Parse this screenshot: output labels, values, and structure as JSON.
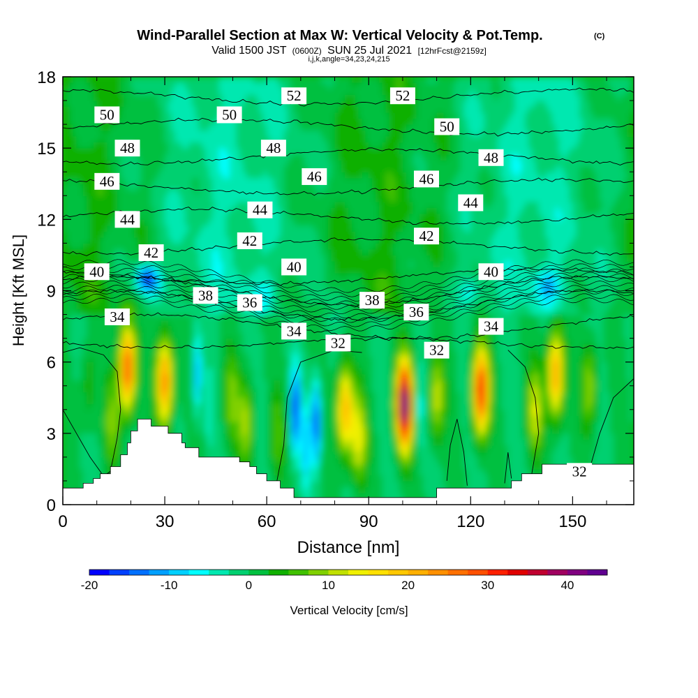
{
  "chart_data": {
    "type": "heatmap",
    "title": "Wind-Parallel Section at Max W: Vertical Velocity & Pot.Temp.",
    "title_mark": "(C)",
    "subtitle_parts": [
      "Valid 1500 JST",
      "(0600Z)",
      "SUN 25 Jul 2021",
      "[12hrFcst@2159z]"
    ],
    "subtitle2": "i,j,k,angle=34,23,24,215",
    "xlabel": "Distance [nm]",
    "ylabel": "Height [Kft MSL]",
    "xlim": [
      0,
      168
    ],
    "ylim": [
      0,
      18
    ],
    "x_ticks": [
      0,
      30,
      60,
      90,
      120,
      150
    ],
    "y_ticks": [
      0,
      3,
      6,
      9,
      12,
      15,
      18
    ],
    "colorbar": {
      "label": "Vertical Velocity [cm/s]",
      "min": -20,
      "max": 45,
      "step": 2.5,
      "ticks": [
        -20,
        -10,
        0,
        10,
        20,
        30,
        40
      ],
      "colors": [
        "#0000ff",
        "#0040ff",
        "#0070ff",
        "#00a0ff",
        "#00d0ff",
        "#00ffff",
        "#00e8b0",
        "#00d070",
        "#00c040",
        "#10b000",
        "#40c000",
        "#80d000",
        "#c0e000",
        "#f0f000",
        "#ffe000",
        "#ffc800",
        "#ffb000",
        "#ff9000",
        "#ff7000",
        "#ff5000",
        "#ff2000",
        "#e00000",
        "#c00030",
        "#a00060",
        "#800080",
        "#600090"
      ]
    },
    "updrafts": [
      {
        "x": 19,
        "y": 5.8,
        "w": 30
      },
      {
        "x": 30,
        "y": 5.2,
        "w": 26
      },
      {
        "x": 14.5,
        "y": 3.5,
        "w": 8
      },
      {
        "x": 49.5,
        "y": 4.5,
        "w": 8
      },
      {
        "x": 54,
        "y": 3.5,
        "w": 10
      },
      {
        "x": 63,
        "y": 3.0,
        "w": 6
      },
      {
        "x": 83,
        "y": 4.0,
        "w": 22
      },
      {
        "x": 87,
        "y": 2.8,
        "w": 14
      },
      {
        "x": 100.5,
        "y": 4.2,
        "w": 44
      },
      {
        "x": 110,
        "y": 4.5,
        "w": 12
      },
      {
        "x": 123,
        "y": 4.8,
        "w": 32
      },
      {
        "x": 145,
        "y": 5.5,
        "w": 24
      },
      {
        "x": 155,
        "y": 5.0,
        "w": 10
      },
      {
        "x": 7.5,
        "y": 5.0,
        "w": 5
      },
      {
        "x": 139,
        "y": 4.0,
        "w": 12
      }
    ],
    "downdrafts": [
      {
        "x": 25,
        "y": 9.5,
        "w": -18
      },
      {
        "x": 39.5,
        "y": 5.5,
        "w": -12
      },
      {
        "x": 43,
        "y": 4.0,
        "w": -4
      },
      {
        "x": 68.5,
        "y": 4.0,
        "w": -20
      },
      {
        "x": 74.5,
        "y": 3.5,
        "w": -20
      },
      {
        "x": 71.5,
        "y": 2.5,
        "w": -10
      },
      {
        "x": 105,
        "y": 4.0,
        "w": -6
      },
      {
        "x": 120,
        "y": 9.0,
        "w": -6
      },
      {
        "x": 143,
        "y": 9.2,
        "w": -8
      },
      {
        "x": 80,
        "y": 8.5,
        "w": -4
      },
      {
        "x": 60,
        "y": 9.0,
        "w": -3
      }
    ],
    "terrain": [
      [
        0,
        0.7
      ],
      [
        6,
        0.7
      ],
      [
        6,
        0.9
      ],
      [
        9,
        0.9
      ],
      [
        9,
        1.1
      ],
      [
        11,
        1.1
      ],
      [
        11,
        1.3
      ],
      [
        14,
        1.3
      ],
      [
        14,
        1.6
      ],
      [
        17,
        1.6
      ],
      [
        17,
        2.1
      ],
      [
        19,
        2.1
      ],
      [
        19,
        2.6
      ],
      [
        20,
        2.6
      ],
      [
        20,
        3.1
      ],
      [
        22,
        3.1
      ],
      [
        22,
        3.6
      ],
      [
        26,
        3.6
      ],
      [
        26,
        3.3
      ],
      [
        31,
        3.3
      ],
      [
        31,
        3.0
      ],
      [
        35,
        3.0
      ],
      [
        35,
        2.6
      ],
      [
        36,
        2.6
      ],
      [
        36,
        2.4
      ],
      [
        40,
        2.4
      ],
      [
        40,
        2.0
      ],
      [
        52,
        2.0
      ],
      [
        52,
        1.8
      ],
      [
        55,
        1.8
      ],
      [
        55,
        1.6
      ],
      [
        57,
        1.6
      ],
      [
        57,
        1.3
      ],
      [
        60,
        1.3
      ],
      [
        60,
        1.0
      ],
      [
        64,
        1.0
      ],
      [
        64,
        0.7
      ],
      [
        68,
        0.7
      ],
      [
        68,
        0.3
      ],
      [
        110,
        0.3
      ],
      [
        110,
        0.7
      ],
      [
        132,
        0.7
      ],
      [
        132,
        1.0
      ],
      [
        135,
        1.0
      ],
      [
        135,
        1.3
      ],
      [
        141,
        1.3
      ],
      [
        141,
        1.7
      ],
      [
        168,
        1.7
      ]
    ],
    "theta_contours": [
      {
        "level": 32,
        "labels": [
          [
            81,
            6.8
          ],
          [
            110,
            6.5
          ],
          [
            152,
            1.4
          ]
        ]
      },
      {
        "level": 34,
        "labels": [
          [
            16,
            7.9
          ],
          [
            68,
            7.3
          ],
          [
            126,
            7.5
          ]
        ]
      },
      {
        "level": 36,
        "labels": [
          [
            55,
            8.5
          ],
          [
            104,
            8.1
          ]
        ]
      },
      {
        "level": 38,
        "labels": [
          [
            42,
            8.8
          ],
          [
            91,
            8.6
          ]
        ]
      },
      {
        "level": 40,
        "labels": [
          [
            10,
            9.8
          ],
          [
            68,
            10.0
          ],
          [
            126,
            9.8
          ]
        ]
      },
      {
        "level": 42,
        "labels": [
          [
            26,
            10.6
          ],
          [
            55,
            11.1
          ],
          [
            107,
            11.3
          ]
        ]
      },
      {
        "level": 44,
        "labels": [
          [
            19,
            12.0
          ],
          [
            58,
            12.4
          ],
          [
            120,
            12.7
          ]
        ]
      },
      {
        "level": 46,
        "labels": [
          [
            13,
            13.6
          ],
          [
            74,
            13.8
          ],
          [
            107,
            13.7
          ]
        ]
      },
      {
        "level": 48,
        "labels": [
          [
            19,
            15.0
          ],
          [
            62,
            15.0
          ],
          [
            126,
            14.6
          ]
        ]
      },
      {
        "level": 50,
        "labels": [
          [
            13,
            16.4
          ],
          [
            49,
            16.4
          ],
          [
            113,
            15.9
          ]
        ]
      },
      {
        "level": 52,
        "labels": [
          [
            68,
            17.2
          ],
          [
            100,
            17.2
          ]
        ]
      }
    ]
  }
}
